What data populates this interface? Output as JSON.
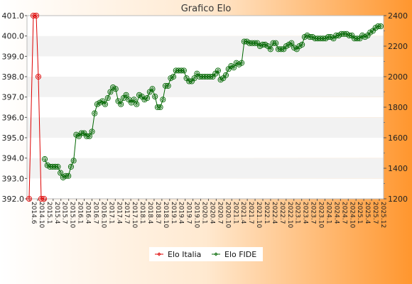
{
  "chart_data": {
    "type": "line",
    "title": "Grafico Elo",
    "y_left": {
      "ticks": [
        "392.0",
        "393.0",
        "394.0",
        "395.0",
        "396.0",
        "397.0",
        "398.0",
        "399.0",
        "400.0",
        "401.0"
      ],
      "range": [
        392.0,
        401.0
      ]
    },
    "y_right": {
      "ticks": [
        "1200",
        "1400",
        "1600",
        "1800",
        "2000",
        "2200",
        "2400"
      ],
      "range": [
        1200,
        2400
      ]
    },
    "x_axis": {
      "labels": [
        "2014.6",
        "2014.10",
        "2015.1",
        "2015.4",
        "2015.7",
        "2015.10",
        "2016.1",
        "2016.4",
        "2016.7",
        "2016.10",
        "2017.1",
        "2017.4",
        "2017.7",
        "2017.10",
        "2018.1",
        "2018.4",
        "2018.7",
        "2018.10",
        "2019.1",
        "2019.4",
        "2019.7",
        "2019.10",
        "2020.1",
        "2020.4",
        "2020.7",
        "2020.10",
        "2021.1",
        "2021.4",
        "2021.7",
        "2021.10",
        "2022.1",
        "2022.4",
        "2022.7",
        "2022.10",
        "2023.1",
        "2023.4",
        "2023.7",
        "2023.10",
        "2024.1",
        "2024.4",
        "2024.7",
        "2024.10",
        "2025.1",
        "2025.4",
        "2025.7",
        "2025.12"
      ]
    },
    "series": [
      {
        "name": "Elo Italia",
        "axis": "left",
        "color": "#dd0000",
        "values": [
          392.0,
          401.0,
          401.0,
          398.0,
          392.0,
          392.0
        ]
      },
      {
        "name": "Elo FIDE",
        "axis": "right",
        "color": "#006600",
        "values": [
          1460,
          1420,
          1410,
          1410,
          1410,
          1410,
          1370,
          1340,
          1350,
          1350,
          1410,
          1450,
          1620,
          1610,
          1630,
          1630,
          1610,
          1610,
          1640,
          1760,
          1820,
          1830,
          1840,
          1820,
          1860,
          1900,
          1930,
          1920,
          1840,
          1820,
          1860,
          1880,
          1850,
          1830,
          1850,
          1820,
          1880,
          1870,
          1850,
          1860,
          1900,
          1920,
          1870,
          1800,
          1800,
          1850,
          1940,
          1940,
          1990,
          2000,
          2040,
          2040,
          2040,
          2040,
          1990,
          1970,
          1970,
          1990,
          2020,
          2000,
          2000,
          2000,
          2000,
          2000,
          2000,
          2020,
          2040,
          1980,
          1990,
          2010,
          2050,
          2070,
          2060,
          2090,
          2080,
          2090,
          2230,
          2230,
          2220,
          2220,
          2220,
          2220,
          2200,
          2210,
          2210,
          2200,
          2180,
          2220,
          2220,
          2180,
          2180,
          2180,
          2200,
          2210,
          2220,
          2190,
          2180,
          2200,
          2210,
          2260,
          2270,
          2260,
          2260,
          2250,
          2250,
          2250,
          2250,
          2250,
          2260,
          2260,
          2250,
          2270,
          2270,
          2280,
          2280,
          2280,
          2270,
          2270,
          2250,
          2250,
          2250,
          2270,
          2260,
          2270,
          2290,
          2300,
          2320,
          2330,
          2330
        ]
      }
    ],
    "grid": true,
    "legend": {
      "position": "bottom-center",
      "entries": [
        "Elo Italia",
        "Elo FIDE"
      ]
    }
  },
  "colors": {
    "background_left": "#ffffff",
    "background_right": "#ff9a33",
    "plot_band_light": "#f2f2f2",
    "plot_band_white": "#ffffff"
  }
}
